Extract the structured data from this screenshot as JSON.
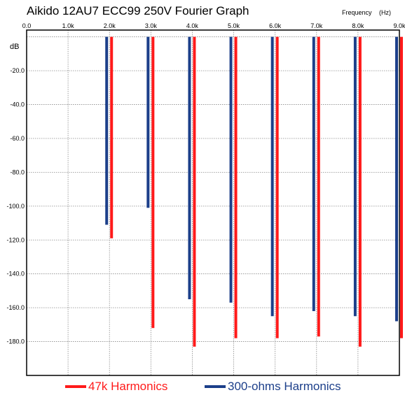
{
  "chart_data": {
    "type": "bar",
    "title": "Aikido 12AU7 ECC99 250V Fourier Graph",
    "xunit_label": "Frequency",
    "xunit": "(Hz)",
    "ylabel": "dB",
    "x_ticks": [
      "0.0",
      "1.0k",
      "2.0k",
      "3.0k",
      "4.0k",
      "5.0k",
      "6.0k",
      "7.0k",
      "8.0k",
      "9.0k"
    ],
    "y_ticks": [
      "-20.0",
      "-40.0",
      "-60.0",
      "-80.0",
      "-100.0",
      "-120.0",
      "-140.0",
      "-160.0",
      "-180.0"
    ],
    "xlim": [
      0,
      9000
    ],
    "ylim": [
      -200,
      4
    ],
    "grid": true,
    "legend_position": "bottom",
    "series": [
      {
        "name": "47k Harmonics",
        "color": "#ff1a1a",
        "x": [
          2000,
          3000,
          4000,
          5000,
          6000,
          7000,
          8000,
          9000
        ],
        "values": [
          -119,
          -172,
          -183,
          -178,
          -178,
          -177,
          -183,
          -178
        ]
      },
      {
        "name": "300-ohms Harmonics",
        "color": "#1c3f8a",
        "x": [
          2000,
          3000,
          4000,
          5000,
          6000,
          7000,
          8000,
          9000
        ],
        "values": [
          -111,
          -101,
          -155,
          -157,
          -165,
          -162,
          -165,
          -168
        ]
      }
    ]
  }
}
